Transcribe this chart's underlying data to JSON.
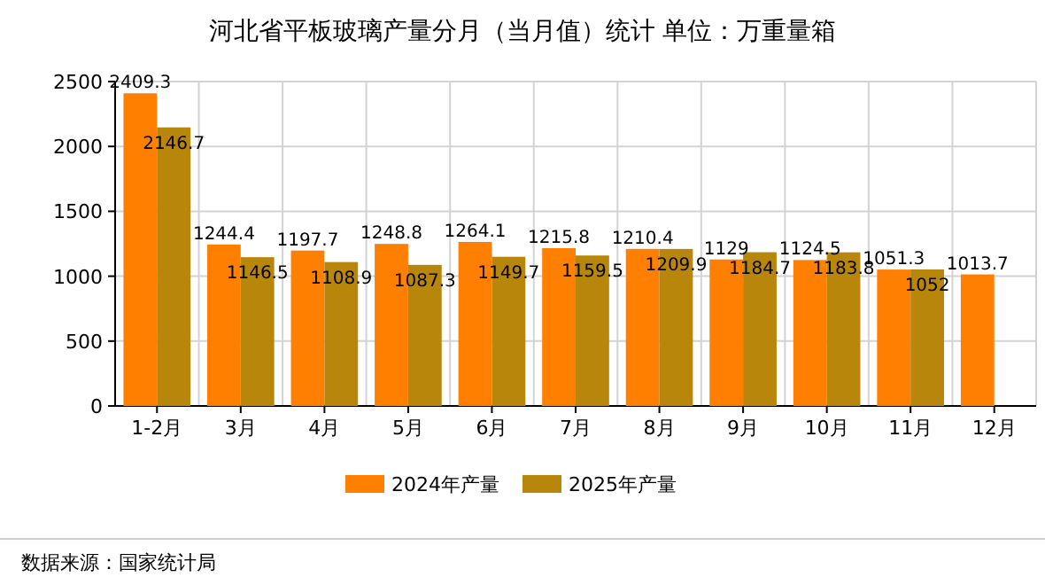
{
  "chart_data": {
    "type": "bar",
    "title": "河北省平板玻璃产量分月（当月值）统计 单位：万重量箱",
    "categories": [
      "1-2月",
      "3月",
      "4月",
      "5月",
      "6月",
      "7月",
      "8月",
      "9月",
      "10月",
      "11月",
      "12月"
    ],
    "series": [
      {
        "name": "2024年产量",
        "color": "#ff7f00",
        "values": [
          2409.3,
          1244.4,
          1197.7,
          1248.8,
          1264.1,
          1215.8,
          1210.4,
          1129,
          1124.5,
          1051.3,
          1013.7
        ]
      },
      {
        "name": "2025年产量",
        "color": "#b8860b",
        "values": [
          2146.7,
          1146.5,
          1108.9,
          1087.3,
          1149.7,
          1159.5,
          1209.9,
          1184.7,
          1183.8,
          1052,
          null
        ]
      }
    ],
    "ylim": [
      0,
      2500
    ],
    "yticks": [
      0,
      500,
      1000,
      1500,
      2000,
      2500
    ],
    "grid": true,
    "legend": "bottom",
    "data_labels": true,
    "annotations": [
      "数据来源：国家统计局"
    ]
  }
}
